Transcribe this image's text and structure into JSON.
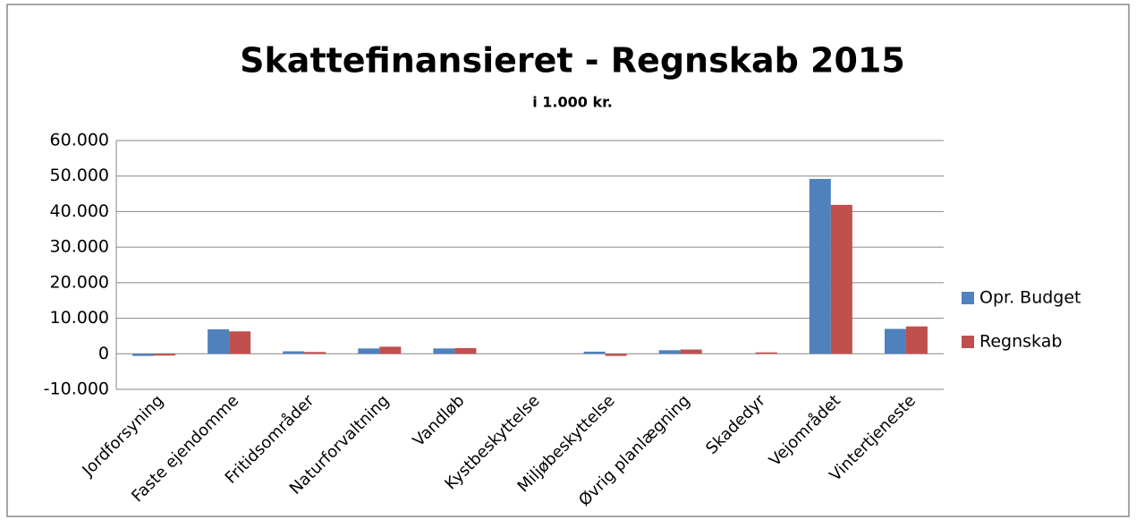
{
  "chart_data": {
    "type": "bar",
    "title": "Skattefinansieret - Regnskab 2015",
    "subtitle": "i 1.000 kr.",
    "categories": [
      "Jordforsyning",
      "Faste ejendomme",
      "Fritidsområder",
      "Naturforvaltning",
      "Vandløb",
      "Kystbeskyttelse",
      "Miljøbeskyttelse",
      "Øvrig planlægning",
      "Skadedyr",
      "Vejområdet",
      "Vintertjeneste"
    ],
    "series": [
      {
        "name": "Opr. Budget",
        "color": "#4f81bd",
        "values": [
          -600,
          6900,
          700,
          1500,
          1500,
          0,
          600,
          1000,
          0,
          49200,
          7000
        ]
      },
      {
        "name": "Regnskab",
        "color": "#c0504d",
        "values": [
          -500,
          6300,
          500,
          2000,
          1600,
          0,
          -600,
          1200,
          400,
          41900,
          7700
        ]
      }
    ],
    "ylim": [
      -10000,
      60000
    ],
    "yticks": [
      {
        "value": -10000,
        "label": "-10.000"
      },
      0,
      {
        "value": 10000,
        "label": "10.000"
      },
      {
        "value": 20000,
        "label": "20.000"
      },
      {
        "value": 30000,
        "label": "30.000"
      },
      {
        "value": 40000,
        "label": "40.000"
      },
      {
        "value": 50000,
        "label": "50.000"
      },
      {
        "value": 60000,
        "label": "60.000"
      }
    ],
    "grid": true,
    "legend": "right"
  }
}
